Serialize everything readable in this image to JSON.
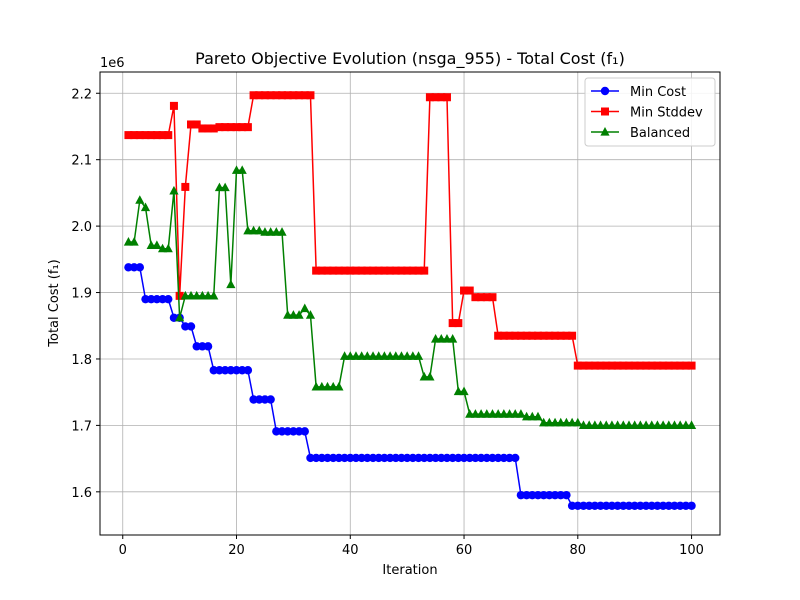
{
  "chart_data": {
    "type": "line",
    "title": "Pareto Objective Evolution (nsga_955) - Total Cost (f₁)",
    "xlabel": "Iteration",
    "ylabel": "Total Cost (f₁)",
    "y_offset_label": "1e6",
    "xlim": [
      -4,
      105
    ],
    "ylim": [
      1535000,
      2232000
    ],
    "x_ticks": [
      0,
      20,
      40,
      60,
      80,
      100
    ],
    "y_ticks": [
      1600000,
      1700000,
      1800000,
      1900000,
      2000000,
      2100000,
      2200000
    ],
    "y_tick_labels": [
      "1.6",
      "1.7",
      "1.8",
      "1.9",
      "2.0",
      "2.1",
      "2.2"
    ],
    "grid": true,
    "legend_position": "top-right",
    "x": [
      1,
      2,
      3,
      4,
      5,
      6,
      7,
      8,
      9,
      10,
      11,
      12,
      13,
      14,
      15,
      16,
      17,
      18,
      19,
      20,
      21,
      22,
      23,
      24,
      25,
      26,
      27,
      28,
      29,
      30,
      31,
      32,
      33,
      34,
      35,
      36,
      37,
      38,
      39,
      40,
      41,
      42,
      43,
      44,
      45,
      46,
      47,
      48,
      49,
      50,
      51,
      52,
      53,
      54,
      55,
      56,
      57,
      58,
      59,
      60,
      61,
      62,
      63,
      64,
      65,
      66,
      67,
      68,
      69,
      70,
      71,
      72,
      73,
      74,
      75,
      76,
      77,
      78,
      79,
      80,
      81,
      82,
      83,
      84,
      85,
      86,
      87,
      88,
      89,
      90,
      91,
      92,
      93,
      94,
      95,
      96,
      97,
      98,
      99,
      100
    ],
    "series": [
      {
        "name": "Min Cost",
        "color": "#0000ff",
        "marker": "circle",
        "values": [
          1938000,
          1938000,
          1938000,
          1890000,
          1890000,
          1890000,
          1890000,
          1890000,
          1862000,
          1862000,
          1849000,
          1849000,
          1819000,
          1819000,
          1819000,
          1783000,
          1783000,
          1783000,
          1783000,
          1783000,
          1783000,
          1783000,
          1739000,
          1739000,
          1739000,
          1739000,
          1691000,
          1691000,
          1691000,
          1691000,
          1691000,
          1691000,
          1651000,
          1651000,
          1651000,
          1651000,
          1651000,
          1651000,
          1651000,
          1651000,
          1651000,
          1651000,
          1651000,
          1651000,
          1651000,
          1651000,
          1651000,
          1651000,
          1651000,
          1651000,
          1651000,
          1651000,
          1651000,
          1651000,
          1651000,
          1651000,
          1651000,
          1651000,
          1651000,
          1651000,
          1651000,
          1651000,
          1651000,
          1651000,
          1651000,
          1651000,
          1651000,
          1651000,
          1651000,
          1595000,
          1595000,
          1595000,
          1595000,
          1595000,
          1595000,
          1595000,
          1595000,
          1595000,
          1579000,
          1579000,
          1579000,
          1579000,
          1579000,
          1579000,
          1579000,
          1579000,
          1579000,
          1579000,
          1579000,
          1579000,
          1579000,
          1579000,
          1579000,
          1579000,
          1579000,
          1579000,
          1579000,
          1579000,
          1579000,
          1579000
        ]
      },
      {
        "name": "Min Stddev",
        "color": "#ff0000",
        "marker": "square",
        "values": [
          2137000,
          2137000,
          2137000,
          2137000,
          2137000,
          2137000,
          2137000,
          2137000,
          2181000,
          1895000,
          2059000,
          2153000,
          2153000,
          2147000,
          2147000,
          2147000,
          2149000,
          2149000,
          2149000,
          2149000,
          2149000,
          2149000,
          2197000,
          2197000,
          2197000,
          2197000,
          2197000,
          2197000,
          2197000,
          2197000,
          2197000,
          2197000,
          2197000,
          1933000,
          1933000,
          1933000,
          1933000,
          1933000,
          1933000,
          1933000,
          1933000,
          1933000,
          1933000,
          1933000,
          1933000,
          1933000,
          1933000,
          1933000,
          1933000,
          1933000,
          1933000,
          1933000,
          1933000,
          2194000,
          2194000,
          2194000,
          2194000,
          1854000,
          1854000,
          1903000,
          1903000,
          1893000,
          1893000,
          1893000,
          1893000,
          1835000,
          1835000,
          1835000,
          1835000,
          1835000,
          1835000,
          1835000,
          1835000,
          1835000,
          1835000,
          1835000,
          1835000,
          1835000,
          1835000,
          1790000,
          1790000,
          1790000,
          1790000,
          1790000,
          1790000,
          1790000,
          1790000,
          1790000,
          1790000,
          1790000,
          1790000,
          1790000,
          1790000,
          1790000,
          1790000,
          1790000,
          1790000,
          1790000,
          1790000,
          1790000
        ]
      },
      {
        "name": "Balanced",
        "color": "#008000",
        "marker": "triangle-up",
        "values": [
          1976000,
          1976000,
          2039000,
          2028000,
          1971000,
          1971000,
          1966000,
          1966000,
          2053000,
          1862000,
          1895000,
          1895000,
          1895000,
          1895000,
          1895000,
          1895000,
          2058000,
          2058000,
          1912000,
          2084000,
          2084000,
          1993000,
          1993000,
          1993000,
          1991000,
          1991000,
          1991000,
          1991000,
          1866000,
          1866000,
          1866000,
          1876000,
          1866000,
          1758000,
          1758000,
          1758000,
          1758000,
          1758000,
          1804000,
          1804000,
          1804000,
          1804000,
          1804000,
          1804000,
          1804000,
          1804000,
          1804000,
          1804000,
          1804000,
          1804000,
          1804000,
          1804000,
          1773000,
          1773000,
          1830000,
          1830000,
          1830000,
          1830000,
          1751000,
          1751000,
          1717000,
          1717000,
          1717000,
          1717000,
          1717000,
          1717000,
          1717000,
          1717000,
          1717000,
          1717000,
          1713000,
          1713000,
          1713000,
          1704000,
          1704000,
          1704000,
          1704000,
          1704000,
          1704000,
          1704000,
          1700000,
          1700000,
          1700000,
          1700000,
          1700000,
          1700000,
          1700000,
          1700000,
          1700000,
          1700000,
          1700000,
          1700000,
          1700000,
          1700000,
          1700000,
          1700000,
          1700000,
          1700000,
          1700000,
          1700000
        ]
      }
    ]
  }
}
